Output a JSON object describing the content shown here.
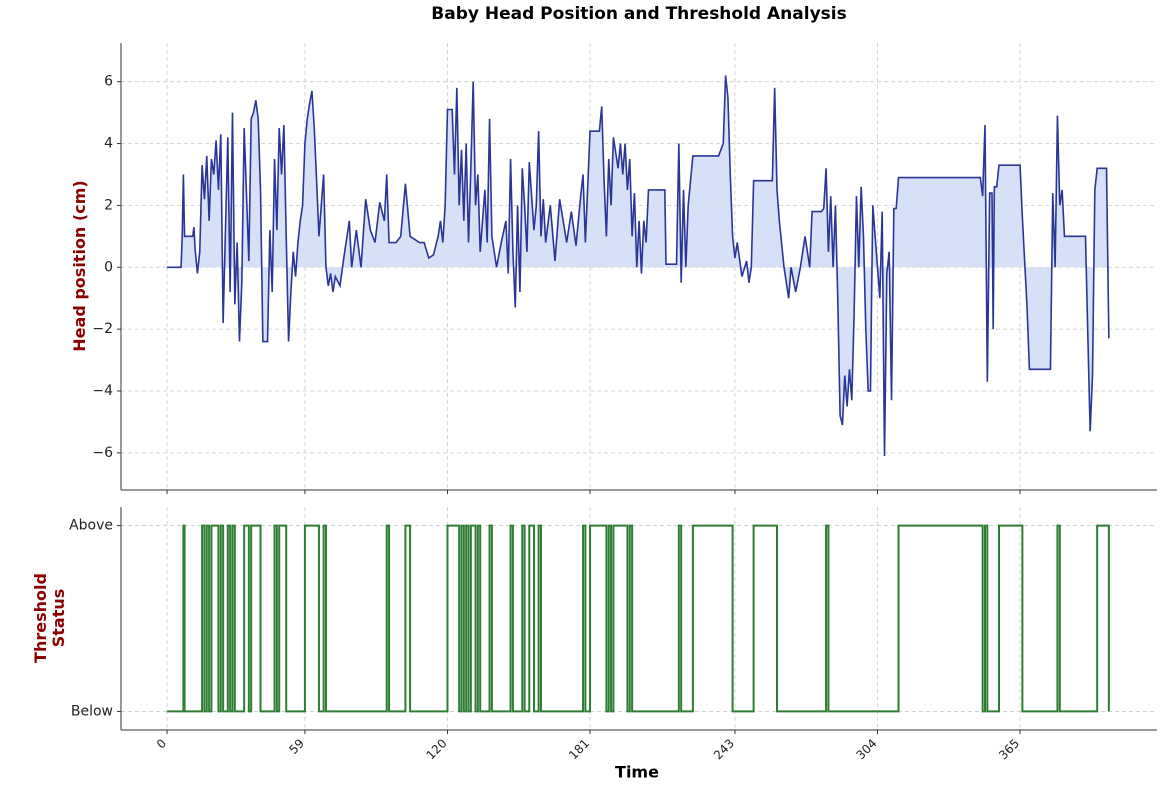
{
  "chart_data": [
    {
      "type": "area-line",
      "title": "Baby Head Position and Threshold Analysis",
      "ylabel": "Head position (cm)",
      "color": "#2b3595",
      "fill_color": "#d6e0f6",
      "grid": true,
      "xlim": [
        -19.7,
        423.6
      ],
      "xticks": [
        0,
        59,
        120,
        181,
        243,
        304,
        365
      ],
      "ylim": [
        -7.2,
        7.25
      ],
      "yticks": [
        {
          "value": -6,
          "label": "−6"
        },
        {
          "value": -4,
          "label": "−4"
        },
        {
          "value": -2,
          "label": "−2"
        },
        0,
        2,
        4,
        6
      ],
      "x": [
        0,
        6,
        6.5,
        7,
        7.5,
        11,
        11.5,
        12,
        13,
        14,
        15,
        16,
        17,
        18,
        19,
        20,
        21,
        22,
        23,
        24,
        25,
        26,
        27,
        28,
        29,
        30,
        31,
        32,
        33,
        35,
        36,
        37,
        38,
        39,
        40,
        41,
        43,
        44,
        45,
        46,
        47,
        48,
        49,
        50,
        51,
        52,
        53,
        54,
        55,
        56,
        57,
        58,
        59,
        60,
        61,
        62,
        63,
        64,
        65,
        66,
        67,
        68,
        69,
        70,
        71,
        72,
        74,
        76,
        78,
        79,
        81,
        83,
        85,
        87,
        89,
        91,
        93,
        94,
        95,
        98,
        100,
        102,
        104,
        106,
        108,
        110,
        112,
        114,
        116,
        117,
        118,
        119,
        120,
        122,
        123,
        124,
        125,
        126,
        127,
        128,
        129,
        130,
        131,
        132,
        133,
        134,
        136,
        137,
        138,
        139,
        141,
        143,
        145,
        146,
        147,
        148,
        149,
        150,
        151,
        152,
        153,
        154,
        155,
        157,
        158,
        159,
        160,
        161,
        162,
        164,
        166,
        168,
        171,
        173,
        175,
        177,
        178,
        179,
        181,
        185,
        186,
        187,
        188,
        189,
        190,
        191,
        193,
        194,
        195,
        196,
        197,
        198,
        199,
        200,
        201,
        202,
        203,
        204,
        205,
        206,
        213,
        213.5,
        218,
        219,
        220,
        221,
        222,
        223,
        225,
        236,
        238,
        239,
        240,
        241,
        242,
        243,
        244,
        246,
        248,
        249,
        250,
        251,
        259,
        260,
        261,
        262,
        264,
        266,
        267,
        269,
        271,
        273,
        275,
        276,
        280,
        281,
        282,
        283,
        284,
        285,
        286,
        287,
        288,
        289,
        290,
        291,
        292,
        293,
        294,
        295,
        296,
        297,
        298,
        299,
        300,
        301,
        301.5,
        302,
        305,
        306,
        307,
        308,
        309,
        310,
        311,
        312,
        313,
        348,
        349,
        350,
        351,
        352,
        353,
        353.5,
        354,
        355,
        356,
        365,
        366,
        368,
        369,
        378,
        379,
        380,
        381,
        382,
        383,
        384,
        393,
        394,
        395,
        396,
        397,
        398,
        402,
        403
      ],
      "values": [
        0,
        0,
        1,
        3,
        1,
        1,
        1.3,
        0.6,
        -0.2,
        0.5,
        3.3,
        2.2,
        3.6,
        1.5,
        3.5,
        3,
        4.1,
        2.5,
        4.3,
        -1.8,
        1.2,
        4.2,
        -0.8,
        5,
        -1.2,
        0.8,
        -2.4,
        -0.5,
        4.5,
        0.2,
        4.8,
        5,
        5.4,
        4.8,
        2.5,
        -2.4,
        -2.4,
        1.2,
        -0.8,
        3.5,
        1.2,
        4.5,
        3,
        4.6,
        1,
        -2.4,
        -0.8,
        0.5,
        -0.3,
        0.8,
        1.5,
        2,
        4,
        4.8,
        5.3,
        5.7,
        4.5,
        2.8,
        1,
        2,
        3,
        0,
        -0.6,
        -0.2,
        -0.8,
        -0.3,
        -0.6,
        0.5,
        1.5,
        0,
        1.2,
        0,
        2.2,
        1.2,
        0.8,
        2.1,
        1.5,
        3,
        0.8,
        0.8,
        1,
        2.7,
        1,
        0.9,
        0.8,
        0.8,
        0.3,
        0.4,
        1,
        1.5,
        0.8,
        2,
        5.1,
        5.1,
        3,
        5.8,
        2,
        3.8,
        1.5,
        4,
        0.8,
        3.2,
        6,
        2,
        3,
        0.5,
        2.5,
        0.8,
        4.8,
        1,
        0,
        0.8,
        1.5,
        -0.2,
        3.5,
        0.5,
        -1.3,
        2,
        -0.8,
        3.2,
        2,
        0.5,
        3.4,
        1.2,
        2,
        4.4,
        1,
        2.2,
        0.8,
        2,
        0.2,
        2.2,
        0.8,
        1.8,
        0.7,
        2.3,
        3,
        0.8,
        4.4,
        4.4,
        5.2,
        2.8,
        1,
        3.5,
        2,
        4.2,
        3.2,
        4,
        3,
        4,
        2.5,
        3.5,
        1,
        2.4,
        0,
        1.5,
        -0.2,
        1.5,
        0.8,
        2.5,
        2.5,
        0.1,
        0.1,
        4,
        -0.5,
        2.5,
        0,
        2,
        3.6,
        3.6,
        4,
        6.2,
        5.5,
        3,
        1,
        0.3,
        0.8,
        -0.3,
        0.2,
        -0.5,
        0,
        2.8,
        2.8,
        5.8,
        2.5,
        1.5,
        0,
        -1,
        0,
        -0.8,
        0,
        1,
        0,
        1.8,
        1.8,
        1.9,
        3.2,
        0.5,
        2.3,
        0,
        2,
        -1,
        -4.8,
        -5.1,
        -3.5,
        -4.5,
        -3.3,
        -4.3,
        -1.5,
        2.3,
        0,
        2.6,
        1,
        -2,
        -4,
        -4,
        -0.8,
        2,
        -1,
        1.8,
        -6.1,
        -0.2,
        0.5,
        -4.3,
        1.9,
        1.9,
        2.9,
        2.9,
        2.3,
        4.6,
        -3.7,
        2.4,
        2.4,
        -2,
        2.6,
        2.6,
        3.3,
        3.3,
        1.6,
        -1.3,
        -3.3,
        -3.3,
        2.4,
        0,
        4.9,
        2,
        2.5,
        1,
        1,
        -2.2,
        -5.3,
        -3.5,
        2.5,
        3.2,
        3.2,
        -2.3
      ]
    },
    {
      "type": "step",
      "ylabel": "Threshold Status",
      "xlabel": "Time",
      "color": "#2e7d32",
      "grid": true,
      "xlim": [
        -19.7,
        423.6
      ],
      "xticks": [
        0,
        59,
        120,
        181,
        243,
        304,
        365
      ],
      "ylim": [
        -0.1,
        1.1
      ],
      "yticks": [
        {
          "value": 0,
          "label": "Below"
        },
        {
          "value": 1,
          "label": "Above"
        }
      ],
      "x": [
        0,
        7,
        7.5,
        15,
        16,
        17,
        18,
        19,
        22,
        23,
        24,
        26,
        27,
        28,
        29,
        33,
        35,
        36,
        40,
        46,
        47,
        48,
        51,
        59,
        65,
        67,
        68,
        94,
        95,
        102,
        104,
        120,
        125,
        126,
        127,
        128,
        129,
        130,
        132,
        133,
        134,
        138,
        139,
        147,
        148,
        152,
        153,
        155,
        157,
        159,
        160,
        178,
        179,
        181,
        188,
        189,
        190,
        191,
        197,
        198,
        199,
        219,
        220,
        225,
        242,
        251,
        261,
        282,
        283,
        313,
        349,
        350,
        351,
        356,
        366,
        381,
        382,
        398,
        403
      ],
      "values": [
        0,
        1,
        0,
        1,
        0,
        1,
        0,
        1,
        0,
        1,
        0,
        1,
        0,
        1,
        0,
        1,
        0,
        1,
        0,
        1,
        0,
        1,
        0,
        1,
        0,
        1,
        0,
        1,
        0,
        1,
        0,
        1,
        0,
        1,
        0,
        1,
        0,
        1,
        0,
        1,
        0,
        1,
        0,
        1,
        0,
        1,
        0,
        1,
        0,
        1,
        0,
        1,
        0,
        1,
        0,
        1,
        0,
        1,
        0,
        1,
        0,
        1,
        0,
        1,
        0,
        1,
        0,
        1,
        0,
        1,
        0,
        1,
        0,
        1,
        0,
        1,
        0,
        1,
        0
      ]
    }
  ]
}
